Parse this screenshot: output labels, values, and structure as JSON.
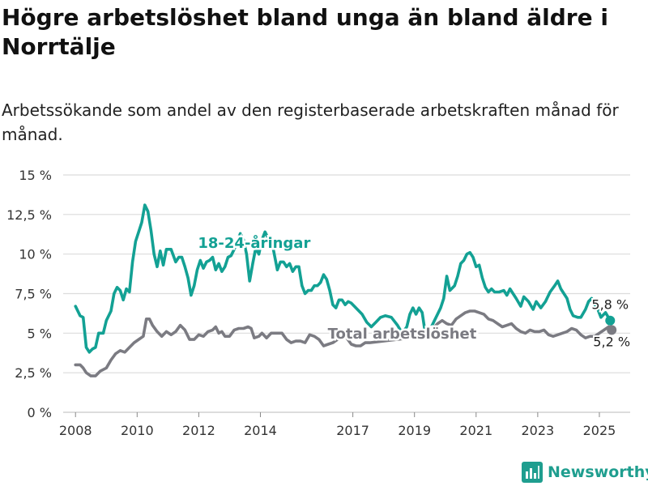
{
  "page": {
    "title": "Högre arbetslöshet bland unga än bland äldre i Norrtälje",
    "subtitle": "Arbetssökande som andel av den registerbaserade arbetskraften månad för månad.",
    "logo_text": "Newsworthy"
  },
  "colors": {
    "youth": "#13a194",
    "total": "#7b7b82",
    "grid": "#dcdcdc",
    "axis_text": "#333333",
    "logo": "#1f9e8f"
  },
  "chart_data": {
    "type": "line",
    "yticks": [
      "0 %",
      "2,5 %",
      "5 %",
      "7,5 %",
      "10 %",
      "12,5 %",
      "15 %"
    ],
    "ytick_values": [
      0,
      2.5,
      5,
      7.5,
      10,
      12.5,
      15
    ],
    "ylim": [
      0,
      15
    ],
    "xlim": [
      2007.6,
      2026.0
    ],
    "xticks": [
      "2008",
      "2010",
      "2012",
      "2014",
      "2017",
      "2019",
      "2021",
      "2023",
      "2025"
    ],
    "xtick_values": [
      2008,
      2010,
      2012,
      2014,
      2017,
      2019,
      2021,
      2023,
      2025
    ],
    "grid": "horizontal",
    "series": [
      {
        "name": "18-24-åringar",
        "label_at": [
          2013.8,
          10.4
        ],
        "end_label": "5,8 %",
        "points": [
          [
            2008.0,
            6.7
          ],
          [
            2008.15,
            6.1
          ],
          [
            2008.25,
            6.0
          ],
          [
            2008.35,
            4.1
          ],
          [
            2008.45,
            3.8
          ],
          [
            2008.55,
            4.0
          ],
          [
            2008.65,
            4.1
          ],
          [
            2008.75,
            5.0
          ],
          [
            2008.9,
            5.0
          ],
          [
            2009.0,
            5.8
          ],
          [
            2009.15,
            6.4
          ],
          [
            2009.25,
            7.5
          ],
          [
            2009.35,
            7.9
          ],
          [
            2009.45,
            7.7
          ],
          [
            2009.55,
            7.1
          ],
          [
            2009.65,
            7.8
          ],
          [
            2009.75,
            7.6
          ],
          [
            2009.85,
            9.5
          ],
          [
            2009.95,
            10.8
          ],
          [
            2010.05,
            11.4
          ],
          [
            2010.15,
            12.0
          ],
          [
            2010.25,
            13.1
          ],
          [
            2010.35,
            12.7
          ],
          [
            2010.45,
            11.5
          ],
          [
            2010.55,
            10.0
          ],
          [
            2010.65,
            9.2
          ],
          [
            2010.75,
            10.2
          ],
          [
            2010.85,
            9.3
          ],
          [
            2010.95,
            10.3
          ],
          [
            2011.1,
            10.3
          ],
          [
            2011.25,
            9.5
          ],
          [
            2011.35,
            9.8
          ],
          [
            2011.45,
            9.8
          ],
          [
            2011.55,
            9.2
          ],
          [
            2011.65,
            8.5
          ],
          [
            2011.75,
            7.4
          ],
          [
            2011.85,
            8.0
          ],
          [
            2011.95,
            9.0
          ],
          [
            2012.05,
            9.6
          ],
          [
            2012.15,
            9.1
          ],
          [
            2012.25,
            9.5
          ],
          [
            2012.35,
            9.6
          ],
          [
            2012.45,
            9.8
          ],
          [
            2012.55,
            9.0
          ],
          [
            2012.65,
            9.4
          ],
          [
            2012.75,
            8.9
          ],
          [
            2012.85,
            9.2
          ],
          [
            2012.95,
            9.8
          ],
          [
            2013.05,
            9.9
          ],
          [
            2013.15,
            10.3
          ],
          [
            2013.25,
            10.8
          ],
          [
            2013.35,
            11.3
          ],
          [
            2013.45,
            10.9
          ],
          [
            2013.55,
            10.0
          ],
          [
            2013.65,
            8.3
          ],
          [
            2013.75,
            9.4
          ],
          [
            2013.85,
            10.4
          ],
          [
            2013.95,
            10.0
          ],
          [
            2014.05,
            10.9
          ],
          [
            2014.15,
            11.4
          ],
          [
            2014.25,
            11.0
          ],
          [
            2014.35,
            11.0
          ],
          [
            2014.45,
            10.0
          ],
          [
            2014.55,
            9.0
          ],
          [
            2014.65,
            9.5
          ],
          [
            2014.75,
            9.5
          ],
          [
            2014.85,
            9.2
          ],
          [
            2014.95,
            9.4
          ],
          [
            2015.05,
            8.9
          ],
          [
            2015.15,
            9.2
          ],
          [
            2015.25,
            9.2
          ],
          [
            2015.35,
            8.0
          ],
          [
            2015.45,
            7.5
          ],
          [
            2015.55,
            7.7
          ],
          [
            2015.65,
            7.7
          ],
          [
            2015.75,
            8.0
          ],
          [
            2015.85,
            8.0
          ],
          [
            2015.95,
            8.2
          ],
          [
            2016.05,
            8.7
          ],
          [
            2016.15,
            8.4
          ],
          [
            2016.25,
            7.7
          ],
          [
            2016.35,
            6.8
          ],
          [
            2016.45,
            6.6
          ],
          [
            2016.55,
            7.1
          ],
          [
            2016.65,
            7.1
          ],
          [
            2016.75,
            6.8
          ],
          [
            2016.85,
            7.0
          ],
          [
            2016.95,
            6.9
          ],
          [
            2017.05,
            6.7
          ],
          [
            2017.2,
            6.4
          ],
          [
            2017.3,
            6.2
          ],
          [
            2017.45,
            5.7
          ],
          [
            2017.6,
            5.4
          ],
          [
            2017.75,
            5.7
          ],
          [
            2017.9,
            6.0
          ],
          [
            2018.05,
            6.1
          ],
          [
            2018.25,
            6.0
          ],
          [
            2018.45,
            5.5
          ],
          [
            2018.6,
            5.0
          ],
          [
            2018.75,
            5.4
          ],
          [
            2018.85,
            6.2
          ],
          [
            2018.95,
            6.6
          ],
          [
            2019.05,
            6.2
          ],
          [
            2019.15,
            6.6
          ],
          [
            2019.25,
            6.3
          ],
          [
            2019.35,
            5.0
          ],
          [
            2019.5,
            5.2
          ],
          [
            2019.6,
            5.6
          ],
          [
            2019.7,
            6.0
          ],
          [
            2019.85,
            6.6
          ],
          [
            2019.95,
            7.2
          ],
          [
            2020.05,
            8.6
          ],
          [
            2020.15,
            7.7
          ],
          [
            2020.3,
            8.0
          ],
          [
            2020.4,
            8.6
          ],
          [
            2020.5,
            9.4
          ],
          [
            2020.6,
            9.6
          ],
          [
            2020.7,
            10.0
          ],
          [
            2020.8,
            10.1
          ],
          [
            2020.9,
            9.8
          ],
          [
            2021.0,
            9.2
          ],
          [
            2021.1,
            9.3
          ],
          [
            2021.2,
            8.5
          ],
          [
            2021.3,
            7.9
          ],
          [
            2021.4,
            7.6
          ],
          [
            2021.5,
            7.8
          ],
          [
            2021.6,
            7.6
          ],
          [
            2021.75,
            7.6
          ],
          [
            2021.9,
            7.7
          ],
          [
            2022.0,
            7.4
          ],
          [
            2022.1,
            7.8
          ],
          [
            2022.2,
            7.5
          ],
          [
            2022.3,
            7.2
          ],
          [
            2022.45,
            6.7
          ],
          [
            2022.55,
            7.3
          ],
          [
            2022.7,
            7.0
          ],
          [
            2022.85,
            6.5
          ],
          [
            2022.95,
            7.0
          ],
          [
            2023.1,
            6.6
          ],
          [
            2023.25,
            7.0
          ],
          [
            2023.4,
            7.6
          ],
          [
            2023.55,
            8.0
          ],
          [
            2023.65,
            8.3
          ],
          [
            2023.75,
            7.8
          ],
          [
            2023.85,
            7.5
          ],
          [
            2023.95,
            7.2
          ],
          [
            2024.05,
            6.5
          ],
          [
            2024.15,
            6.1
          ],
          [
            2024.3,
            6.0
          ],
          [
            2024.4,
            6.0
          ],
          [
            2024.55,
            6.5
          ],
          [
            2024.65,
            7.0
          ],
          [
            2024.75,
            7.2
          ],
          [
            2024.85,
            6.8
          ],
          [
            2024.95,
            6.5
          ],
          [
            2025.05,
            6.0
          ],
          [
            2025.2,
            6.3
          ],
          [
            2025.35,
            5.8
          ]
        ]
      },
      {
        "name": "Total arbetslöshet",
        "label_at": [
          2018.6,
          4.65
        ],
        "end_label": "5,2 %",
        "points": [
          [
            2008.0,
            3.0
          ],
          [
            2008.15,
            3.0
          ],
          [
            2008.25,
            2.8
          ],
          [
            2008.35,
            2.5
          ],
          [
            2008.5,
            2.3
          ],
          [
            2008.65,
            2.3
          ],
          [
            2008.8,
            2.6
          ],
          [
            2009.0,
            2.8
          ],
          [
            2009.15,
            3.3
          ],
          [
            2009.3,
            3.7
          ],
          [
            2009.45,
            3.9
          ],
          [
            2009.6,
            3.8
          ],
          [
            2009.75,
            4.1
          ],
          [
            2009.9,
            4.4
          ],
          [
            2010.05,
            4.6
          ],
          [
            2010.2,
            4.8
          ],
          [
            2010.3,
            5.9
          ],
          [
            2010.4,
            5.9
          ],
          [
            2010.5,
            5.5
          ],
          [
            2010.65,
            5.1
          ],
          [
            2010.8,
            4.8
          ],
          [
            2010.95,
            5.1
          ],
          [
            2011.1,
            4.9
          ],
          [
            2011.25,
            5.1
          ],
          [
            2011.4,
            5.5
          ],
          [
            2011.55,
            5.2
          ],
          [
            2011.7,
            4.6
          ],
          [
            2011.85,
            4.6
          ],
          [
            2012.0,
            4.9
          ],
          [
            2012.15,
            4.8
          ],
          [
            2012.3,
            5.1
          ],
          [
            2012.45,
            5.2
          ],
          [
            2012.55,
            5.4
          ],
          [
            2012.65,
            5.0
          ],
          [
            2012.75,
            5.1
          ],
          [
            2012.85,
            4.8
          ],
          [
            2013.0,
            4.8
          ],
          [
            2013.15,
            5.2
          ],
          [
            2013.3,
            5.3
          ],
          [
            2013.45,
            5.3
          ],
          [
            2013.6,
            5.4
          ],
          [
            2013.7,
            5.3
          ],
          [
            2013.8,
            4.7
          ],
          [
            2013.95,
            4.8
          ],
          [
            2014.05,
            5.0
          ],
          [
            2014.2,
            4.7
          ],
          [
            2014.35,
            5.0
          ],
          [
            2014.55,
            5.0
          ],
          [
            2014.7,
            5.0
          ],
          [
            2014.85,
            4.6
          ],
          [
            2015.0,
            4.4
          ],
          [
            2015.15,
            4.5
          ],
          [
            2015.3,
            4.5
          ],
          [
            2015.45,
            4.4
          ],
          [
            2015.6,
            4.9
          ],
          [
            2015.75,
            4.8
          ],
          [
            2015.9,
            4.6
          ],
          [
            2016.05,
            4.2
          ],
          [
            2016.2,
            4.3
          ],
          [
            2016.35,
            4.4
          ],
          [
            2016.5,
            4.6
          ],
          [
            2016.65,
            4.9
          ],
          [
            2016.8,
            4.7
          ],
          [
            2016.95,
            4.3
          ],
          [
            2017.1,
            4.2
          ],
          [
            2017.25,
            4.2
          ],
          [
            2017.4,
            4.4
          ],
          [
            2017.55,
            4.4
          ],
          [
            2019.3,
            4.8
          ],
          [
            2019.45,
            5.0
          ],
          [
            2019.6,
            5.3
          ],
          [
            2019.75,
            5.6
          ],
          [
            2019.9,
            5.8
          ],
          [
            2020.05,
            5.6
          ],
          [
            2020.2,
            5.5
          ],
          [
            2020.35,
            5.9
          ],
          [
            2020.5,
            6.1
          ],
          [
            2020.65,
            6.3
          ],
          [
            2020.8,
            6.4
          ],
          [
            2020.95,
            6.4
          ],
          [
            2021.1,
            6.3
          ],
          [
            2021.25,
            6.2
          ],
          [
            2021.4,
            5.9
          ],
          [
            2021.55,
            5.8
          ],
          [
            2021.7,
            5.6
          ],
          [
            2021.85,
            5.4
          ],
          [
            2022.0,
            5.5
          ],
          [
            2022.15,
            5.6
          ],
          [
            2022.3,
            5.3
          ],
          [
            2022.45,
            5.1
          ],
          [
            2022.6,
            5.0
          ],
          [
            2022.75,
            5.2
          ],
          [
            2022.9,
            5.1
          ],
          [
            2023.05,
            5.1
          ],
          [
            2023.2,
            5.2
          ],
          [
            2023.35,
            4.9
          ],
          [
            2023.5,
            4.8
          ],
          [
            2023.65,
            4.9
          ],
          [
            2023.8,
            5.0
          ],
          [
            2023.95,
            5.1
          ],
          [
            2024.1,
            5.3
          ],
          [
            2024.25,
            5.2
          ],
          [
            2024.4,
            4.9
          ],
          [
            2024.55,
            4.7
          ],
          [
            2024.7,
            4.8
          ],
          [
            2024.85,
            4.8
          ],
          [
            2025.0,
            5.0
          ],
          [
            2025.15,
            5.2
          ],
          [
            2025.3,
            5.4
          ],
          [
            2025.4,
            5.2
          ]
        ]
      }
    ]
  }
}
